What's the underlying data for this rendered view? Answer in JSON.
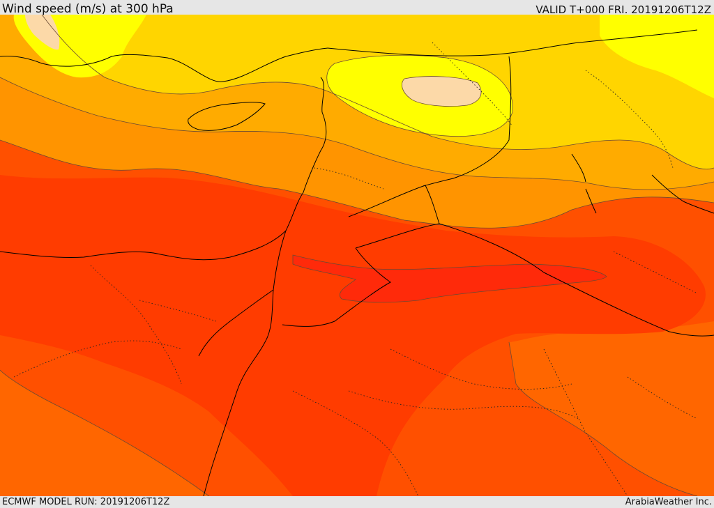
{
  "header": {
    "title": "Wind speed (m/s) at 300 hPa",
    "valid": "VALID T+000 FRI. 20191206T12Z"
  },
  "footer": {
    "model_run": "ECMWF MODEL RUN: 20191206T12Z",
    "credit": "ArabiaWeather Inc."
  },
  "map": {
    "field": "wind speed at 300 hPa",
    "colors": {
      "peach": "#fcd9a8",
      "yellow": "#ffff00",
      "yellow_orange": "#ffd500",
      "light_orange": "#ffab00",
      "orange": "#ff9400",
      "dark_orange": "#ff6600",
      "orange_red": "#ff5000",
      "red_orange": "#ff3c00",
      "red": "#ff2a0a",
      "contour_line": "#555555",
      "coastline": "#000000",
      "border_line": "#000000"
    }
  }
}
